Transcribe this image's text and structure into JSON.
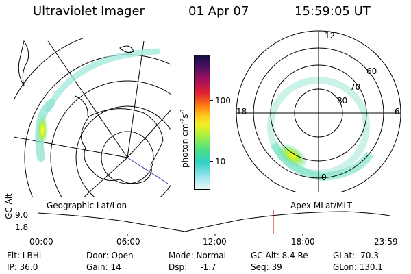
{
  "header": {
    "instrument": "Ultraviolet Imager",
    "date": "01 Apr 07",
    "time": "15:59:05 UT"
  },
  "colorbar": {
    "unit_label": "photon cm",
    "unit_sup1": "-2",
    "unit_s": "s",
    "unit_sup2": "-1",
    "tick_100": "100",
    "tick_10": "10"
  },
  "polar_plot": {
    "labels": {
      "top": "12",
      "left": "18",
      "right": "6",
      "bottom": "0",
      "lat60": "60",
      "lat70": "70",
      "lat80": "80"
    }
  },
  "timeline": {
    "left_title": "Geographic Lat/Lon",
    "right_title": "Apex MLat/MLT",
    "axis_name": "GC Alt",
    "y_top": "9.0",
    "y_bottom": "1.8",
    "times": [
      "00:00",
      "06:00",
      "12:00",
      "18:00",
      "23:59"
    ]
  },
  "info": {
    "flt": "Flt: LBHL",
    "ip": "IP: 36.0",
    "door": "Door: Open",
    "gain": "Gain: 14",
    "mode": "Mode: Normal",
    "dsp": "Dsp:     -1.7",
    "gcalt": "GC Alt: 8.4 Re",
    "seq": "Seq: 39",
    "glat": "GLat: -70.3",
    "glon": "GLon: 130.1"
  },
  "colors": {
    "map_lines": "#000000",
    "auroral_oval": "#7fe0c8",
    "marker": "#cc0000",
    "projection_line": "#3a3ab0"
  }
}
